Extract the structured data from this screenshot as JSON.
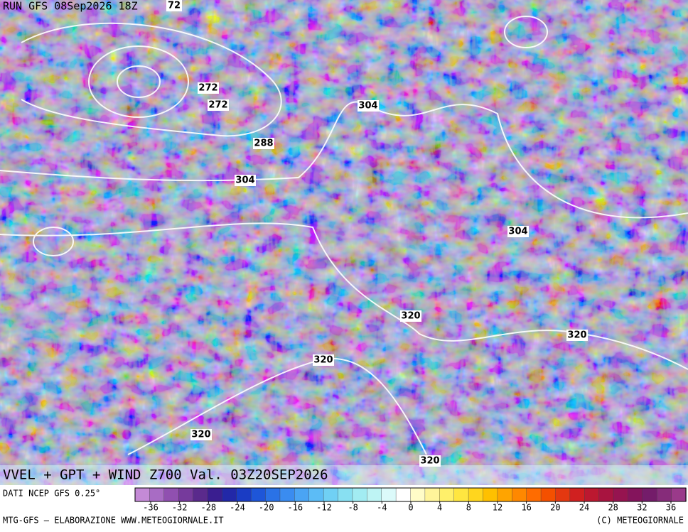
{
  "header": {
    "run": "RUN GFS 08Sep2026 18Z",
    "title": "VVEL + GPT + WIND Z700 Val. 03Z20SEP2026"
  },
  "contour_labels": [
    "72",
    "272",
    "272",
    "288",
    "304",
    "304",
    "304",
    "320",
    "320",
    "320",
    "320",
    "320"
  ],
  "colorbar": {
    "source": "DATI NCEP GFS 0.25°",
    "ticks": [
      -36,
      -32,
      -28,
      -24,
      -20,
      -16,
      -12,
      -8,
      -4,
      0,
      4,
      8,
      12,
      16,
      20,
      24,
      28,
      32,
      36
    ],
    "colors": [
      "#c48ad6",
      "#a86cc4",
      "#9050b0",
      "#763a9c",
      "#5a2a8c",
      "#3a1e90",
      "#2228a8",
      "#1a3cc4",
      "#1e56d8",
      "#2a72e6",
      "#3a8cf0",
      "#4aa4f4",
      "#5cbcf6",
      "#70d0f4",
      "#88e0f2",
      "#a2ecf2",
      "#bef4f4",
      "#dcfafa",
      "#ffffff",
      "#fffcc8",
      "#fff49a",
      "#fff06a",
      "#ffe640",
      "#ffd61e",
      "#ffc000",
      "#ffa400",
      "#ff8800",
      "#ff6c00",
      "#f45000",
      "#e43810",
      "#d02020",
      "#bc1830",
      "#a81440",
      "#961450",
      "#84145c",
      "#741c6a",
      "#862c7a",
      "#9a3a8a"
    ]
  },
  "footer": {
    "credit": "MTG-GFS — ELABORAZIONE WWW.METEOGIORNALE.IT",
    "copyright": "(C) METEOGIORNALE"
  }
}
